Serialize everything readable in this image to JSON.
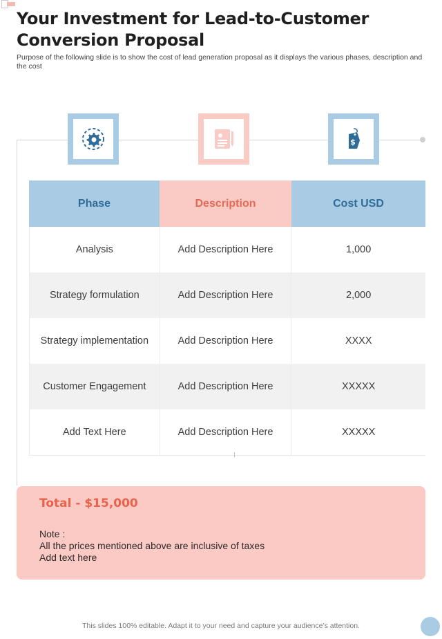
{
  "title": "Your Investment for Lead-to-Customer Conversion Proposal",
  "subtitle": "Purpose of the following slide is to show the cost of lead generation proposal as it displays the various phases, description and the cost",
  "icons": [
    "gear-icon",
    "document-pen-icon",
    "dollar-tag-icon"
  ],
  "colors": {
    "blue": "#a9cbe3",
    "pink": "#f9cbc4",
    "blue_text": "#2f6c9a",
    "pink_text": "#e46a55",
    "total_text": "#e9624c"
  },
  "table": {
    "headers": [
      "Phase",
      "Description",
      "Cost USD"
    ],
    "rows": [
      [
        "Analysis",
        "Add Description Here",
        "1,000"
      ],
      [
        "Strategy formulation",
        "Add Description Here",
        "2,000"
      ],
      [
        "Strategy implementation",
        "Add Description Here",
        "XXXX"
      ],
      [
        "Customer Engagement",
        "Add Description Here",
        "XXXXX"
      ],
      [
        "Add Text Here",
        "Add Description Here",
        "XXXXX"
      ]
    ]
  },
  "total": {
    "title": "Total - $15,000",
    "note_lines": [
      "Note :",
      "All the prices mentioned above are inclusive of taxes",
      "Add text here"
    ]
  },
  "footer": "This slides 100% editable. Adapt it to your need and capture your audience’s attention."
}
